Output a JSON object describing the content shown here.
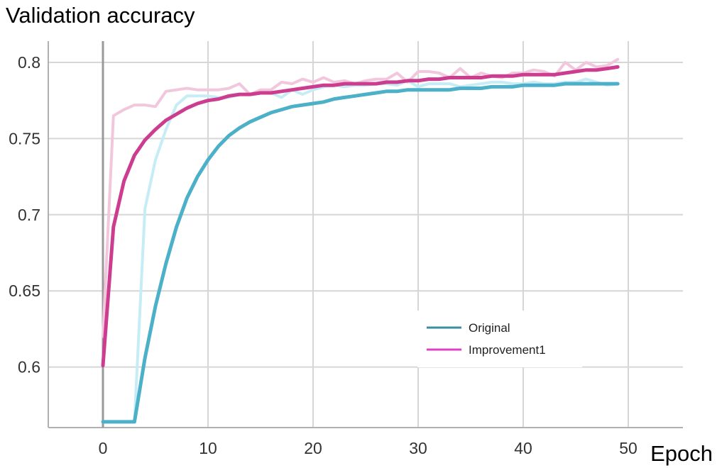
{
  "chart_data": {
    "type": "line",
    "ylabel": "Validation accuracy",
    "xlabel": "Epoch",
    "xlim": [
      -5,
      55
    ],
    "ylim": [
      0.58,
      0.82
    ],
    "xticks": [
      0,
      10,
      20,
      30,
      40,
      50
    ],
    "xtick_labels": [
      "0",
      "10",
      "20",
      "30",
      "40",
      "50"
    ],
    "yticks": [
      0.6,
      0.65,
      0.7,
      0.75,
      0.8
    ],
    "ytick_labels": [
      "0.6",
      "0.65",
      "0.7",
      "0.75",
      "0.8"
    ],
    "grid": true,
    "legend_position": "lower-right",
    "x": [
      0,
      1,
      2,
      3,
      4,
      5,
      6,
      7,
      8,
      9,
      10,
      11,
      12,
      13,
      14,
      15,
      16,
      17,
      18,
      19,
      20,
      21,
      22,
      23,
      24,
      25,
      26,
      27,
      28,
      29,
      30,
      31,
      32,
      33,
      34,
      35,
      36,
      37,
      38,
      39,
      40,
      41,
      42,
      43,
      44,
      45,
      46,
      47,
      48,
      49
    ],
    "series": [
      {
        "name": "Original",
        "color": "#4bb0c8",
        "legend_color": "#3d8ea0",
        "raw_color": "#c6ecf5",
        "values": [
          0.564,
          0.564,
          0.564,
          0.564,
          0.606,
          0.64,
          0.668,
          0.692,
          0.711,
          0.725,
          0.736,
          0.745,
          0.752,
          0.757,
          0.761,
          0.764,
          0.767,
          0.769,
          0.771,
          0.772,
          0.773,
          0.774,
          0.776,
          0.777,
          0.778,
          0.779,
          0.78,
          0.781,
          0.781,
          0.782,
          0.782,
          0.782,
          0.782,
          0.782,
          0.783,
          0.783,
          0.783,
          0.784,
          0.784,
          0.784,
          0.785,
          0.785,
          0.785,
          0.785,
          0.786,
          0.786,
          0.786,
          0.786,
          0.786,
          0.786
        ],
        "raw_values": [
          0.564,
          0.564,
          0.564,
          0.564,
          0.704,
          0.736,
          0.756,
          0.772,
          0.778,
          0.778,
          0.778,
          0.777,
          0.777,
          0.779,
          0.779,
          0.78,
          0.78,
          0.777,
          0.782,
          0.779,
          0.782,
          0.784,
          0.785,
          0.784,
          0.785,
          0.785,
          0.786,
          0.786,
          0.785,
          0.788,
          0.784,
          0.786,
          0.786,
          0.786,
          0.784,
          0.785,
          0.786,
          0.787,
          0.787,
          0.786,
          0.786,
          0.787,
          0.786,
          0.786,
          0.787,
          0.787,
          0.789,
          0.787,
          0.785,
          0.786
        ]
      },
      {
        "name": "Improvement1",
        "color": "#cc3d8f",
        "legend_color": "#e040c8",
        "raw_color": "#f2c6dd",
        "values": [
          0.601,
          0.692,
          0.722,
          0.739,
          0.749,
          0.756,
          0.762,
          0.766,
          0.77,
          0.773,
          0.775,
          0.776,
          0.778,
          0.779,
          0.779,
          0.78,
          0.78,
          0.781,
          0.782,
          0.783,
          0.784,
          0.785,
          0.785,
          0.786,
          0.786,
          0.786,
          0.786,
          0.787,
          0.787,
          0.788,
          0.788,
          0.789,
          0.789,
          0.79,
          0.79,
          0.79,
          0.79,
          0.791,
          0.791,
          0.791,
          0.792,
          0.792,
          0.792,
          0.792,
          0.793,
          0.794,
          0.795,
          0.795,
          0.796,
          0.797
        ],
        "raw_values": [
          0.62,
          0.765,
          0.769,
          0.772,
          0.772,
          0.771,
          0.781,
          0.782,
          0.783,
          0.782,
          0.782,
          0.782,
          0.783,
          0.786,
          0.779,
          0.782,
          0.782,
          0.787,
          0.786,
          0.789,
          0.787,
          0.79,
          0.787,
          0.788,
          0.786,
          0.788,
          0.789,
          0.789,
          0.793,
          0.787,
          0.794,
          0.794,
          0.793,
          0.79,
          0.796,
          0.79,
          0.793,
          0.791,
          0.79,
          0.793,
          0.793,
          0.795,
          0.794,
          0.791,
          0.8,
          0.795,
          0.8,
          0.797,
          0.798,
          0.802
        ]
      }
    ]
  }
}
